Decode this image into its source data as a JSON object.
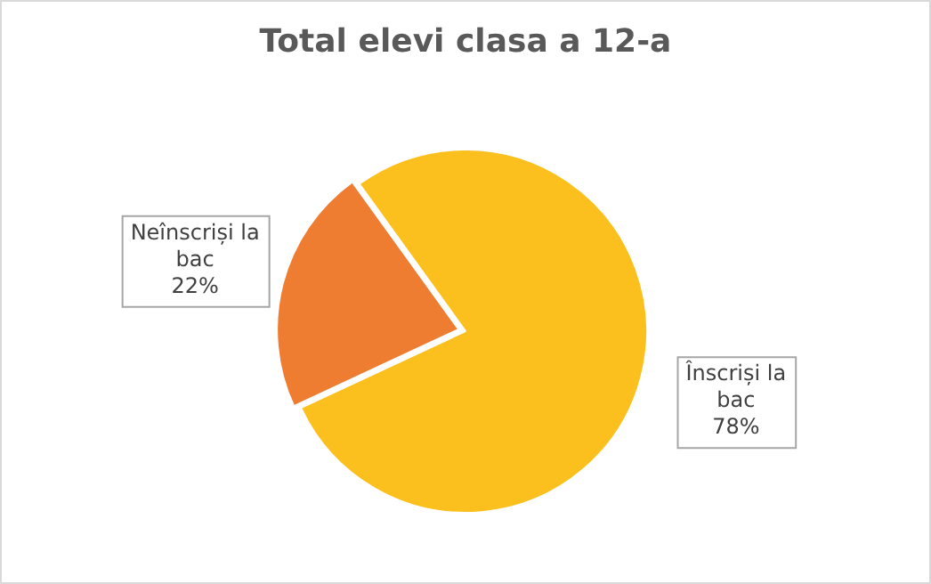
{
  "chart_data": {
    "type": "pie",
    "title": "Total elevi clasa a 12-a",
    "categories": [
      "Neînscriși la bac",
      "Înscriși la bac"
    ],
    "values": [
      22,
      78
    ],
    "colors": [
      "#ee7d32",
      "#fcc01e"
    ],
    "value_labels": [
      "22%",
      "78%"
    ],
    "legend": false
  }
}
